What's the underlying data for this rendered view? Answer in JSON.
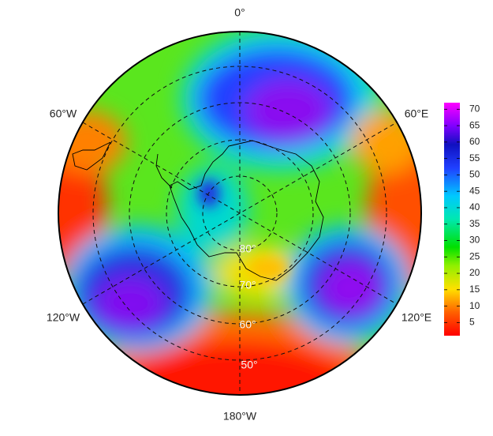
{
  "map": {
    "longitude_labels": [
      "0°",
      "60°E",
      "120°E",
      "180°W",
      "120°W",
      "60°W"
    ],
    "latitude_labels": [
      "80°",
      "70°",
      "60°",
      "50°"
    ],
    "colorbar": {
      "range": [
        1,
        72
      ],
      "ticks": [
        5,
        10,
        15,
        20,
        25,
        30,
        35,
        40,
        45,
        50,
        55,
        60,
        65,
        70
      ]
    }
  }
}
